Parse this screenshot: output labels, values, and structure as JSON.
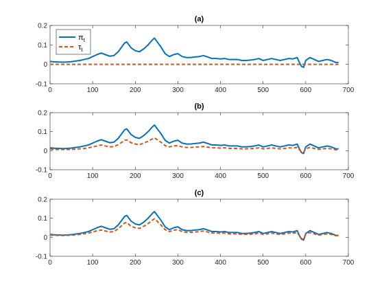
{
  "figure": {
    "background": "#ffffff",
    "colors": {
      "pi": "#0072BD",
      "tau": "#D95319",
      "axis": "#262626"
    }
  },
  "chart_data": [
    {
      "type": "line",
      "title": "(a)",
      "xlim": [
        0,
        700
      ],
      "ylim": [
        -0.1,
        0.2
      ],
      "xticks": [
        0,
        100,
        200,
        300,
        400,
        500,
        600,
        700
      ],
      "yticks": [
        -0.1,
        0,
        0.1,
        0.2
      ],
      "grid": false,
      "legend": {
        "position": "top-left",
        "entries": [
          "π",
          "τ"
        ],
        "subscripts": [
          "t",
          "t"
        ]
      },
      "series": [
        {
          "name": "π_t",
          "style": "solid",
          "x": [
            0,
            10,
            20,
            30,
            40,
            50,
            60,
            70,
            80,
            90,
            100,
            110,
            120,
            130,
            140,
            150,
            160,
            170,
            175,
            180,
            185,
            190,
            200,
            210,
            220,
            230,
            240,
            245,
            250,
            260,
            270,
            280,
            290,
            300,
            310,
            320,
            330,
            340,
            350,
            360,
            370,
            380,
            390,
            400,
            410,
            420,
            430,
            440,
            450,
            460,
            470,
            480,
            490,
            500,
            510,
            520,
            530,
            540,
            550,
            560,
            570,
            580,
            585,
            590,
            595,
            600,
            610,
            620,
            630,
            640,
            650,
            660,
            670,
            677
          ],
          "y": [
            0.015,
            0.013,
            0.012,
            0.011,
            0.012,
            0.014,
            0.017,
            0.02,
            0.025,
            0.03,
            0.04,
            0.05,
            0.058,
            0.05,
            0.042,
            0.045,
            0.065,
            0.095,
            0.11,
            0.115,
            0.1,
            0.085,
            0.07,
            0.065,
            0.08,
            0.1,
            0.125,
            0.135,
            0.12,
            0.09,
            0.055,
            0.04,
            0.05,
            0.055,
            0.04,
            0.035,
            0.035,
            0.038,
            0.04,
            0.045,
            0.038,
            0.03,
            0.03,
            0.028,
            0.03,
            0.025,
            0.025,
            0.025,
            0.02,
            0.02,
            0.022,
            0.025,
            0.03,
            0.02,
            0.025,
            0.03,
            0.025,
            0.02,
            0.025,
            0.03,
            0.028,
            0.035,
            0.01,
            -0.01,
            -0.015,
            0.02,
            0.035,
            0.025,
            0.015,
            0.02,
            0.025,
            0.02,
            0.01,
            0.01
          ]
        },
        {
          "name": "τ_t",
          "style": "dashed",
          "x": [
            0,
            677
          ],
          "y": [
            0,
            0
          ]
        }
      ]
    },
    {
      "type": "line",
      "title": "(b)",
      "xlim": [
        0,
        700
      ],
      "ylim": [
        -0.1,
        0.2
      ],
      "xticks": [
        0,
        100,
        200,
        300,
        400,
        500,
        600,
        700
      ],
      "yticks": [
        -0.1,
        0,
        0.1,
        0.2
      ],
      "grid": false,
      "series": [
        {
          "name": "π_t",
          "style": "solid",
          "x": [
            0,
            10,
            20,
            30,
            40,
            50,
            60,
            70,
            80,
            90,
            100,
            110,
            120,
            130,
            140,
            150,
            160,
            170,
            175,
            180,
            185,
            190,
            200,
            210,
            220,
            230,
            240,
            245,
            250,
            260,
            270,
            280,
            290,
            300,
            310,
            320,
            330,
            340,
            350,
            360,
            370,
            380,
            390,
            400,
            410,
            420,
            430,
            440,
            450,
            460,
            470,
            480,
            490,
            500,
            510,
            520,
            530,
            540,
            550,
            560,
            570,
            580,
            585,
            590,
            595,
            600,
            610,
            620,
            630,
            640,
            650,
            660,
            670,
            677
          ],
          "y": [
            0.015,
            0.013,
            0.012,
            0.011,
            0.012,
            0.014,
            0.017,
            0.02,
            0.025,
            0.03,
            0.04,
            0.05,
            0.058,
            0.05,
            0.042,
            0.045,
            0.065,
            0.095,
            0.11,
            0.115,
            0.1,
            0.085,
            0.07,
            0.065,
            0.08,
            0.1,
            0.125,
            0.135,
            0.12,
            0.09,
            0.055,
            0.04,
            0.05,
            0.055,
            0.04,
            0.035,
            0.035,
            0.038,
            0.04,
            0.045,
            0.038,
            0.03,
            0.03,
            0.028,
            0.03,
            0.025,
            0.025,
            0.025,
            0.02,
            0.02,
            0.022,
            0.025,
            0.03,
            0.02,
            0.025,
            0.03,
            0.025,
            0.02,
            0.025,
            0.03,
            0.028,
            0.035,
            0.01,
            -0.01,
            -0.015,
            0.02,
            0.035,
            0.025,
            0.015,
            0.02,
            0.025,
            0.02,
            0.01,
            0.01
          ]
        },
        {
          "name": "τ_t",
          "style": "dashed",
          "x": [
            0,
            10,
            20,
            30,
            40,
            50,
            60,
            70,
            80,
            90,
            100,
            110,
            120,
            130,
            140,
            150,
            160,
            170,
            175,
            180,
            185,
            190,
            200,
            210,
            220,
            230,
            240,
            245,
            250,
            260,
            270,
            280,
            290,
            300,
            310,
            320,
            330,
            340,
            350,
            360,
            370,
            380,
            390,
            400,
            410,
            420,
            430,
            440,
            450,
            460,
            470,
            480,
            490,
            500,
            510,
            520,
            530,
            540,
            550,
            560,
            570,
            580,
            585,
            590,
            595,
            600,
            610,
            620,
            630,
            640,
            650,
            660,
            670,
            677
          ],
          "y": [
            0.008,
            0.007,
            0.006,
            0.006,
            0.006,
            0.007,
            0.008,
            0.01,
            0.012,
            0.015,
            0.02,
            0.025,
            0.03,
            0.025,
            0.02,
            0.022,
            0.032,
            0.047,
            0.055,
            0.057,
            0.05,
            0.042,
            0.035,
            0.032,
            0.04,
            0.05,
            0.062,
            0.067,
            0.06,
            0.045,
            0.027,
            0.02,
            0.025,
            0.027,
            0.02,
            0.017,
            0.017,
            0.019,
            0.02,
            0.022,
            0.019,
            0.015,
            0.015,
            0.014,
            0.015,
            0.012,
            0.012,
            0.012,
            0.01,
            0.01,
            0.011,
            0.012,
            0.015,
            0.01,
            0.012,
            0.015,
            0.012,
            0.01,
            0.012,
            0.015,
            0.014,
            0.017,
            0.005,
            -0.005,
            -0.007,
            0.01,
            0.017,
            0.012,
            0.007,
            0.01,
            0.012,
            0.01,
            0.005,
            0.005
          ]
        }
      ]
    },
    {
      "type": "line",
      "title": "(c)",
      "xlim": [
        0,
        700
      ],
      "ylim": [
        -0.1,
        0.2
      ],
      "xticks": [
        0,
        100,
        200,
        300,
        400,
        500,
        600,
        700
      ],
      "yticks": [
        -0.1,
        0,
        0.1,
        0.2
      ],
      "grid": false,
      "series": [
        {
          "name": "π_t",
          "style": "solid",
          "x": [
            0,
            10,
            20,
            30,
            40,
            50,
            60,
            70,
            80,
            90,
            100,
            110,
            120,
            130,
            140,
            150,
            160,
            170,
            175,
            180,
            185,
            190,
            200,
            210,
            220,
            230,
            240,
            245,
            250,
            260,
            270,
            280,
            290,
            300,
            310,
            320,
            330,
            340,
            350,
            360,
            370,
            380,
            390,
            400,
            410,
            420,
            430,
            440,
            450,
            460,
            470,
            480,
            490,
            500,
            510,
            520,
            530,
            540,
            550,
            560,
            570,
            580,
            585,
            590,
            595,
            600,
            610,
            620,
            630,
            640,
            650,
            660,
            670,
            677
          ],
          "y": [
            0.015,
            0.013,
            0.012,
            0.011,
            0.012,
            0.014,
            0.017,
            0.02,
            0.025,
            0.03,
            0.04,
            0.05,
            0.058,
            0.05,
            0.042,
            0.045,
            0.065,
            0.095,
            0.11,
            0.115,
            0.1,
            0.085,
            0.07,
            0.065,
            0.08,
            0.1,
            0.125,
            0.135,
            0.12,
            0.09,
            0.055,
            0.04,
            0.05,
            0.055,
            0.04,
            0.035,
            0.035,
            0.038,
            0.04,
            0.045,
            0.038,
            0.03,
            0.03,
            0.028,
            0.03,
            0.025,
            0.025,
            0.025,
            0.02,
            0.02,
            0.022,
            0.025,
            0.03,
            0.02,
            0.025,
            0.03,
            0.025,
            0.02,
            0.025,
            0.03,
            0.028,
            0.035,
            0.01,
            -0.01,
            -0.015,
            0.02,
            0.035,
            0.025,
            0.015,
            0.02,
            0.025,
            0.02,
            0.01,
            0.01
          ]
        },
        {
          "name": "τ_t",
          "style": "dashed",
          "x": [
            0,
            10,
            20,
            30,
            40,
            50,
            60,
            70,
            80,
            90,
            100,
            110,
            120,
            130,
            140,
            150,
            160,
            170,
            175,
            180,
            185,
            190,
            200,
            210,
            220,
            230,
            240,
            245,
            250,
            260,
            270,
            280,
            290,
            300,
            310,
            320,
            330,
            340,
            350,
            360,
            370,
            380,
            390,
            400,
            410,
            420,
            430,
            440,
            450,
            460,
            470,
            480,
            490,
            500,
            510,
            520,
            530,
            540,
            550,
            560,
            570,
            580,
            585,
            590,
            595,
            600,
            610,
            620,
            630,
            640,
            650,
            660,
            670,
            677
          ],
          "y": [
            0.012,
            0.01,
            0.01,
            0.009,
            0.01,
            0.011,
            0.013,
            0.015,
            0.019,
            0.022,
            0.028,
            0.034,
            0.038,
            0.033,
            0.028,
            0.03,
            0.045,
            0.065,
            0.075,
            0.078,
            0.068,
            0.058,
            0.05,
            0.047,
            0.058,
            0.072,
            0.09,
            0.097,
            0.087,
            0.065,
            0.04,
            0.03,
            0.037,
            0.04,
            0.03,
            0.026,
            0.026,
            0.028,
            0.03,
            0.033,
            0.028,
            0.022,
            0.022,
            0.021,
            0.022,
            0.018,
            0.018,
            0.018,
            0.015,
            0.015,
            0.016,
            0.018,
            0.022,
            0.015,
            0.018,
            0.022,
            0.018,
            0.015,
            0.018,
            0.022,
            0.021,
            0.025,
            0.008,
            -0.007,
            -0.01,
            0.015,
            0.025,
            0.018,
            0.011,
            0.015,
            0.018,
            0.015,
            0.008,
            0.008
          ]
        }
      ]
    }
  ]
}
